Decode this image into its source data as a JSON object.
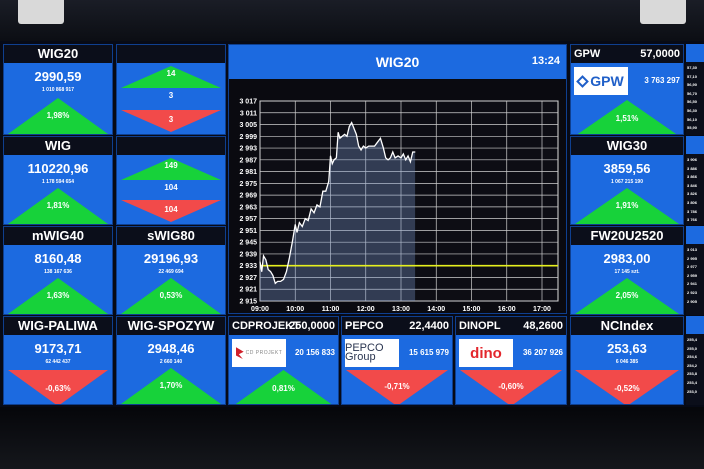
{
  "indices": [
    {
      "name": "WIG20",
      "value": "2990,59",
      "volume": "1 010 868 917",
      "change": "1,98%",
      "direction": "up"
    },
    {
      "name": "WIG",
      "value": "110220,96",
      "volume": "1 178 594 654",
      "change": "1,81%",
      "direction": "up"
    },
    {
      "name": "mWIG40",
      "value": "8160,48",
      "volume": "138 167 636",
      "change": "1,63%",
      "direction": "up"
    },
    {
      "name": "sWIG80",
      "value": "29196,93",
      "volume": "22 469 694",
      "change": "0,53%",
      "direction": "up"
    },
    {
      "name": "WIG-PALIWA",
      "value": "9173,71",
      "volume": "62 442 437",
      "change": "-0,63%",
      "direction": "down"
    },
    {
      "name": "WIG-SPOZYW",
      "value": "2948,46",
      "volume": "2 660 140",
      "change": "1,70%",
      "direction": "up"
    },
    {
      "name": "WIG30",
      "value": "3859,56",
      "volume": "1 067 215 190",
      "change": "1,91%",
      "direction": "up"
    },
    {
      "name": "FW20U2520",
      "value": "2983,00",
      "volume": "17 145 szt.",
      "change": "2,05%",
      "direction": "up"
    },
    {
      "name": "NCIndex",
      "value": "253,63",
      "volume": "6 046 385",
      "change": "-0,52%",
      "direction": "down"
    }
  ],
  "breadth": [
    {
      "name": "",
      "advancing": "14",
      "unchanged": "3",
      "declining": "3"
    },
    {
      "name": "",
      "advancing": "149",
      "unchanged": "104",
      "declining": "104"
    }
  ],
  "stocks": [
    {
      "name": "GPW",
      "price": "57,0000",
      "logo_text": "GPW",
      "volume": "3 763 297",
      "change": "1,51%",
      "direction": "up"
    },
    {
      "name": "CDPROJEKT",
      "price": "250,0000",
      "logo_text": "CD PROJEKT",
      "volume": "20 156 833",
      "change": "0,81%",
      "direction": "up"
    },
    {
      "name": "PEPCO",
      "price": "22,4400",
      "logo_text": "PEPCO Group",
      "volume": "15 615 979",
      "change": "-0,71%",
      "direction": "down"
    },
    {
      "name": "DINOPL",
      "price": "48,2600",
      "logo_text": "dino",
      "volume": "36 207 926",
      "change": "-0,60%",
      "direction": "down"
    }
  ],
  "edge_scales": [
    [
      "57,30",
      "57,10",
      "56,90",
      "56,70",
      "56,50",
      "56,30",
      "56,10",
      "55,90"
    ],
    [
      "3 906",
      "3 886",
      "3 866",
      "3 846",
      "3 826",
      "3 806",
      "3 786",
      "3 766"
    ],
    [
      "3 013",
      "2 995",
      "2 977",
      "2 959",
      "2 941",
      "2 923",
      "2 905"
    ],
    [
      "255,4",
      "255,0",
      "254,6",
      "254,2",
      "253,8",
      "253,4",
      "253,0"
    ]
  ],
  "chart_panel": {
    "title": "WIG20",
    "time": "13:24"
  },
  "colors": {
    "tile": "#1c6ae0",
    "header": "#0b0e1a",
    "up": "#17d23a",
    "down": "#f24a4a",
    "reference_line": "#e6f01e",
    "series": "#ffffff"
  },
  "chart_data": {
    "type": "line",
    "title": "WIG20",
    "ylim": [
      2915,
      3017
    ],
    "yticks": [
      "3 017",
      "3 011",
      "3 005",
      "2 999",
      "2 993",
      "2 987",
      "2 981",
      "2 975",
      "2 969",
      "2 963",
      "2 957",
      "2 951",
      "2 945",
      "2 939",
      "2 933",
      "2 927",
      "2 921",
      "2 915"
    ],
    "xticks": [
      "09:00",
      "10:00",
      "11:00",
      "12:00",
      "13:00",
      "14:00",
      "15:00",
      "16:00",
      "17:00"
    ],
    "grid": true,
    "reference_line": 2933,
    "series": [
      {
        "x": [
          "09:00",
          "09:03",
          "09:06",
          "09:10",
          "09:14",
          "09:18",
          "09:22",
          "09:26",
          "09:30",
          "09:35",
          "09:40",
          "09:45",
          "09:50",
          "09:55",
          "10:00",
          "10:03",
          "10:07",
          "10:12",
          "10:17",
          "10:22",
          "10:27",
          "10:32",
          "10:37",
          "10:42",
          "10:47",
          "10:52",
          "10:57",
          "11:00",
          "11:03",
          "11:06",
          "11:10",
          "11:13",
          "11:16",
          "11:20",
          "11:24",
          "11:28",
          "11:32",
          "11:36",
          "11:40",
          "11:44",
          "11:48",
          "11:52",
          "11:56",
          "12:00",
          "12:05",
          "12:10",
          "12:15",
          "12:20",
          "12:25",
          "12:30",
          "12:34",
          "12:38",
          "12:42",
          "12:46",
          "12:50",
          "12:55",
          "13:00",
          "13:04",
          "13:08",
          "13:12",
          "13:16",
          "13:20",
          "13:24"
        ],
        "y": [
          2935,
          2930,
          2938,
          2936,
          2931,
          2930,
          2928,
          2924,
          2925,
          2925,
          2926,
          2930,
          2937,
          2945,
          2954,
          2950,
          2955,
          2953,
          2957,
          2956,
          2962,
          2960,
          2964,
          2963,
          2971,
          2971,
          2976,
          2989,
          2985,
          2987,
          2988,
          3001,
          2998,
          2999,
          3000,
          2999,
          3004,
          3006,
          3003,
          3000,
          2994,
          2992,
          2994,
          2993,
          2994,
          2994,
          2994,
          2996,
          2998,
          2993,
          2988,
          2987,
          2988,
          2991,
          2988,
          2989,
          2988,
          2990,
          2987,
          2989,
          2986,
          2991,
          2991
        ]
      }
    ]
  }
}
